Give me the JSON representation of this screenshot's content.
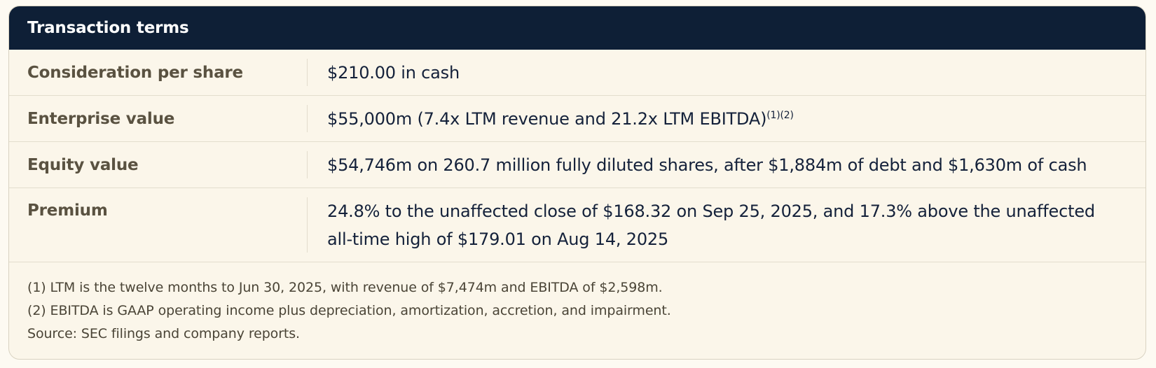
{
  "header": {
    "title": "Transaction terms"
  },
  "rows": [
    {
      "label": "Consideration per share",
      "value": "$210.00 in cash",
      "note_marks": ""
    },
    {
      "label": "Enterprise value",
      "value": "$55,000m (7.4x LTM revenue and 21.2x LTM EBITDA)",
      "note_marks": "(1)(2)"
    },
    {
      "label": "Equity value",
      "value": "$54,746m on 260.7 million fully diluted shares, after $1,884m of debt and $1,630m of cash",
      "note_marks": ""
    },
    {
      "label": "Premium",
      "value": "24.8% to the unaffected close of $168.32 on Sep 25, 2025, and 17.3% above the unaffected all-time high of $179.01 on Aug 14, 2025",
      "note_marks": ""
    }
  ],
  "footnotes": [
    "(1) LTM is the twelve months to Jun 30, 2025, with revenue of $7,474m and EBITDA of $2,598m.",
    "(2) EBITDA is GAAP operating income plus depreciation, amortization, accretion, and impairment.",
    "Source: SEC filings and company reports."
  ],
  "colors": {
    "header_bg": "#0e1f36",
    "card_bg": "#fbf6ea",
    "label_text": "#5a5241",
    "value_text": "#14213a"
  }
}
